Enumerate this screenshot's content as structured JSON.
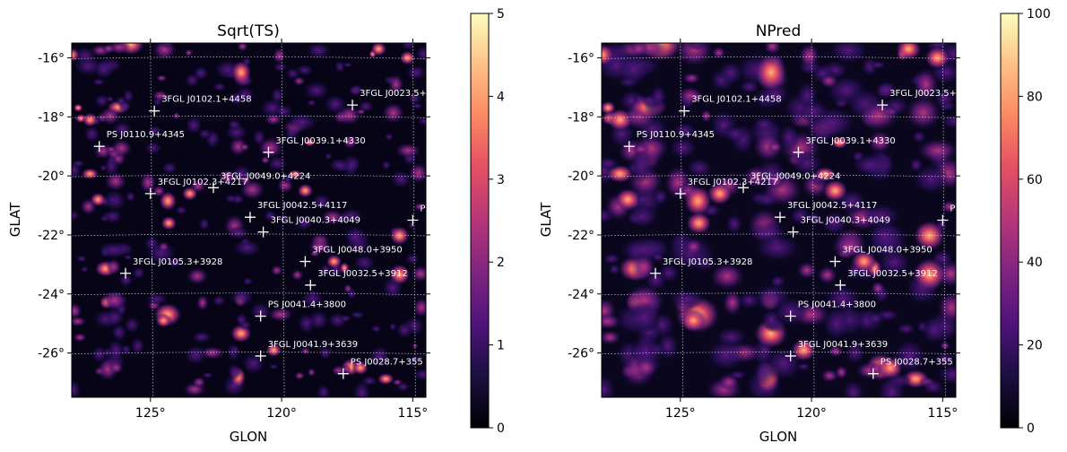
{
  "panels": [
    {
      "title": "Sqrt(TS)",
      "xlabel": "GLON",
      "ylabel": "GLAT",
      "colorbar": {
        "ticks": [
          "0",
          "1",
          "2",
          "3",
          "4",
          "5"
        ],
        "min": 0,
        "max": 5
      },
      "blob_scale": 1
    },
    {
      "title": "NPred",
      "xlabel": "GLON",
      "ylabel": "GLAT",
      "colorbar": {
        "ticks": [
          "0",
          "20",
          "40",
          "60",
          "80",
          "100"
        ],
        "min": 0,
        "max": 100
      },
      "blob_scale": 1.6
    }
  ],
  "chart_data": {
    "type": "heatmap",
    "colormap": "magma",
    "x_axis": {
      "label": "GLON",
      "ticks": [
        "125°",
        "120°",
        "115°"
      ],
      "values": [
        125,
        120,
        115
      ],
      "range_deg": [
        128.0,
        114.5
      ],
      "direction": "decreasing"
    },
    "y_axis": {
      "label": "GLAT",
      "ticks": [
        "-16°",
        "-18°",
        "-20°",
        "-22°",
        "-24°",
        "-26°"
      ],
      "values": [
        -16,
        -18,
        -20,
        -22,
        -24,
        -26
      ],
      "range_deg": [
        -27.5,
        -15.5
      ]
    },
    "grid": true,
    "sources": [
      {
        "name": "3FGL J0102.1+4458",
        "glon": 124.85,
        "glat": -17.8
      },
      {
        "name": "3FGL J0023.5+4",
        "glon": 117.3,
        "glat": -17.6
      },
      {
        "name": "PS J0110.9+4345",
        "glon": 126.95,
        "glat": -19.0
      },
      {
        "name": "3FGL J0039.1+4330",
        "glon": 120.5,
        "glat": -19.2
      },
      {
        "name": "3FGL J0102.3+4217",
        "glon": 125.0,
        "glat": -20.6
      },
      {
        "name": "3FGL J0049.0+4224",
        "glon": 122.6,
        "glat": -20.4
      },
      {
        "name": "3FGL J0042.5+4117",
        "glon": 121.2,
        "glat": -21.4
      },
      {
        "name": "PS",
        "glon": 115.0,
        "glat": -21.5
      },
      {
        "name": "3FGL J0040.3+4049",
        "glon": 120.7,
        "glat": -21.9
      },
      {
        "name": "3FGL J0105.3+3928",
        "glon": 125.95,
        "glat": -23.3
      },
      {
        "name": "3FGL J0048.0+3950",
        "glon": 119.1,
        "glat": -22.9
      },
      {
        "name": "3FGL J0032.5+3912",
        "glon": 118.9,
        "glat": -23.7
      },
      {
        "name": "PS J0041.4+3800",
        "glon": 120.8,
        "glat": -24.75
      },
      {
        "name": "3FGL J0041.9+3639",
        "glon": 120.8,
        "glat": -26.1
      },
      {
        "name": "PS J0028.7+355",
        "glon": 117.65,
        "glat": -26.7
      }
    ]
  }
}
